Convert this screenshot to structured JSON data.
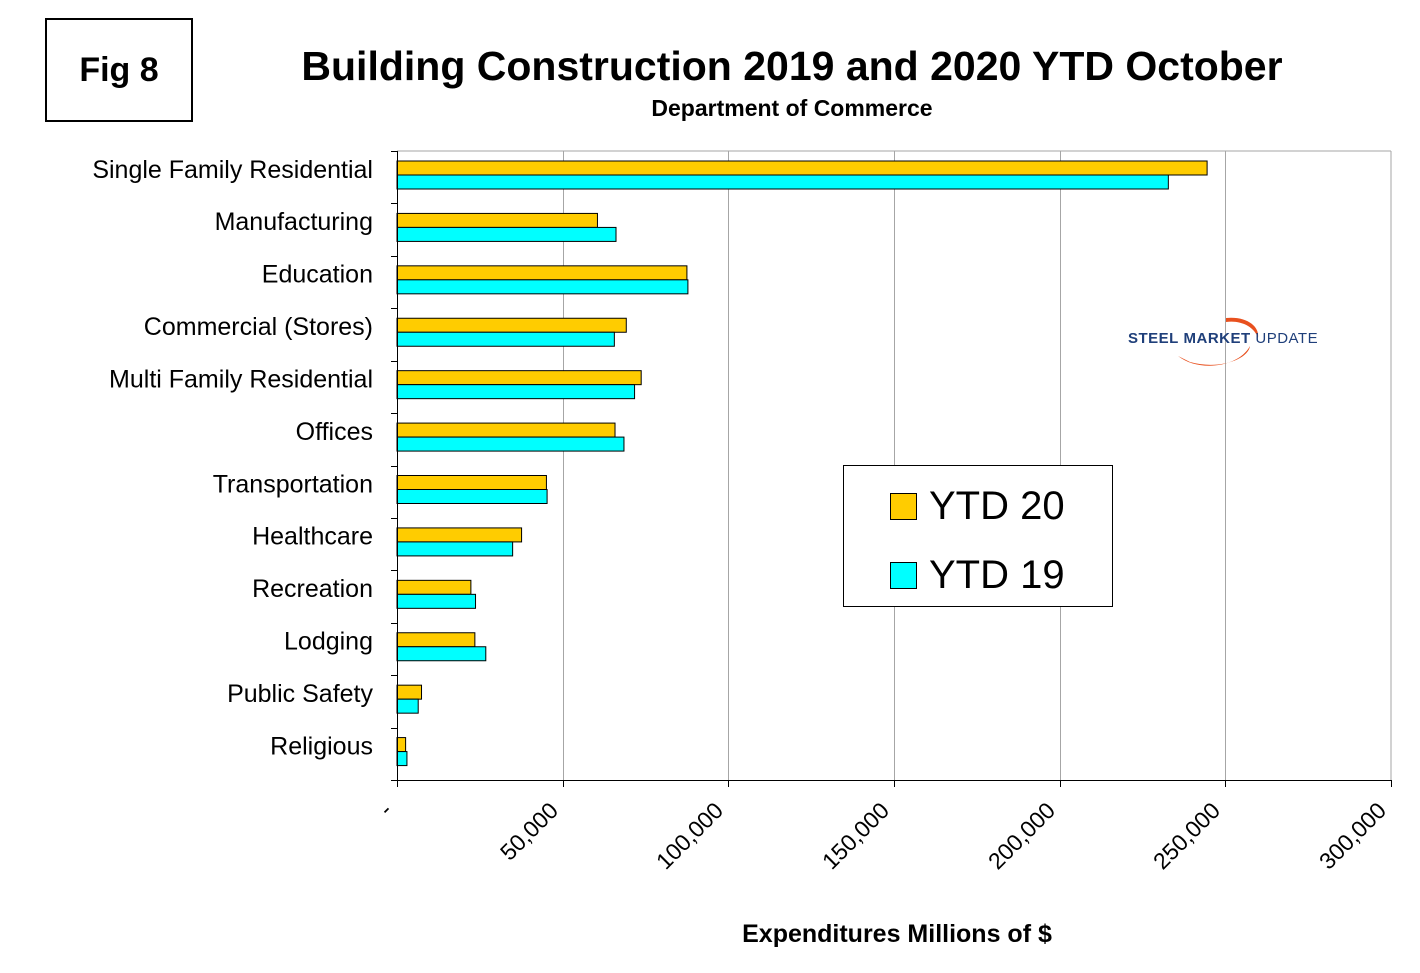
{
  "figure_label": "Fig 8",
  "logo": {
    "steel": "STEEL",
    "market": "MARKET",
    "update": "UPDATE",
    "swoosh_color": "#e8501e"
  },
  "colors": {
    "ytd20": "#ffcc00",
    "ytd19": "#00ffff",
    "grid": "#a6a6a6",
    "axis": "#808080"
  },
  "chart_data": {
    "type": "bar",
    "orientation": "horizontal",
    "title": "Building Construction 2019 and 2020 YTD October",
    "subtitle": "Department of Commerce",
    "xlabel": "Expenditures Millions of $",
    "ylabel": "",
    "xlim": [
      0,
      300000
    ],
    "x_ticks": [
      0,
      50000,
      100000,
      150000,
      200000,
      250000,
      300000
    ],
    "x_tick_labels": [
      "-",
      "50,000",
      "100,000",
      "150,000",
      "200,000",
      "250,000",
      "300,000"
    ],
    "grid": true,
    "legend_position": "center-right",
    "categories": [
      "Single Family Residential",
      "Manufacturing",
      "Education",
      "Commercial (Stores)",
      "Multi Family Residential",
      "Offices",
      "Transportation",
      "Healthcare",
      "Recreation",
      "Lodging",
      "Public Safety",
      "Religious"
    ],
    "series": [
      {
        "name": "YTD 20",
        "values": [
          244500,
          60500,
          87500,
          69200,
          73700,
          65800,
          45100,
          37600,
          22300,
          23500,
          7400,
          2600
        ]
      },
      {
        "name": "YTD 19",
        "values": [
          232800,
          66100,
          87800,
          65600,
          71700,
          68500,
          45300,
          34900,
          23700,
          26800,
          6400,
          3000
        ]
      }
    ]
  }
}
